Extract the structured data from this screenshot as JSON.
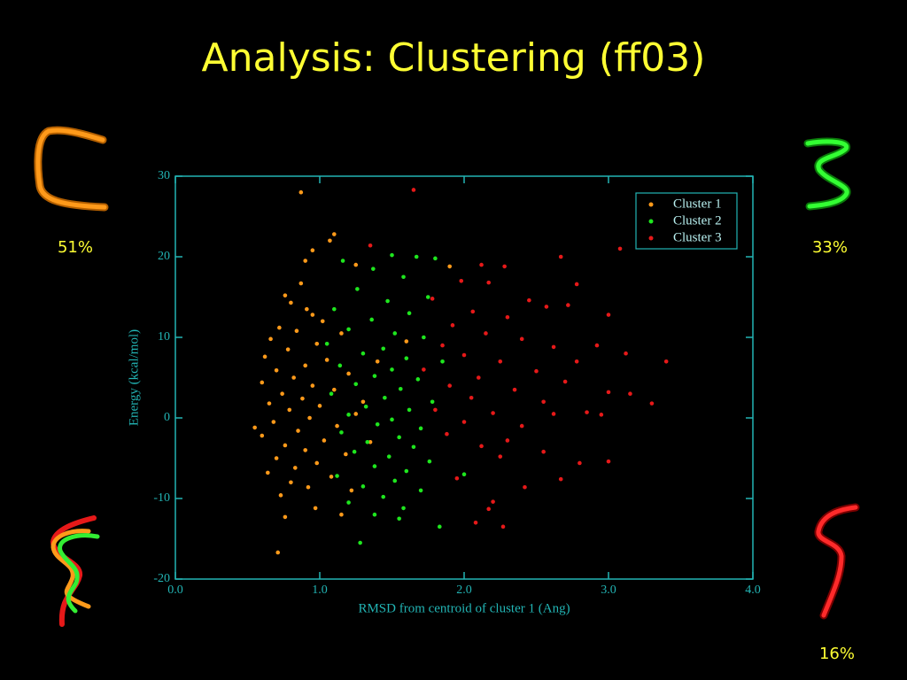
{
  "chart_data": {
    "type": "scatter",
    "title": "Analysis: Clustering (ff03)",
    "xlabel": "RMSD from centroid of cluster 1 (Ang)",
    "ylabel": "Energy (kcal/mol)",
    "xlim": [
      0,
      4
    ],
    "ylim": [
      -20,
      30
    ],
    "xticks": [
      {
        "value": 0,
        "label": "0.0"
      },
      {
        "value": 1,
        "label": "1.0"
      },
      {
        "value": 2,
        "label": "2.0"
      },
      {
        "value": 3,
        "label": "3.0"
      },
      {
        "value": 4,
        "label": "4.0"
      }
    ],
    "yticks": [
      -20,
      -10,
      0,
      10,
      20,
      30
    ],
    "legend": "upper right",
    "series": [
      {
        "name": "Cluster 1",
        "color": "#ff9a1a",
        "x": [
          0.87,
          1.1,
          1.07,
          0.95,
          0.9,
          1.25,
          0.87,
          0.76,
          0.8,
          0.91,
          0.95,
          1.02,
          0.72,
          0.84,
          1.15,
          0.66,
          0.98,
          0.78,
          0.62,
          1.05,
          0.9,
          0.7,
          1.2,
          0.82,
          0.6,
          0.95,
          1.1,
          0.74,
          0.88,
          0.65,
          1.0,
          0.79,
          1.25,
          0.93,
          0.68,
          1.12,
          0.85,
          0.6,
          1.03,
          0.76,
          0.9,
          1.18,
          0.7,
          0.98,
          0.83,
          0.64,
          1.08,
          0.8,
          0.92,
          1.22,
          0.73,
          0.97,
          0.76,
          1.15,
          0.71,
          1.3,
          1.35,
          1.4,
          0.55,
          1.6,
          1.9
        ],
        "values": [
          28,
          22.8,
          22,
          20.8,
          19.5,
          19,
          16.7,
          15.2,
          14.3,
          13.5,
          12.8,
          12,
          11.2,
          10.8,
          10.5,
          9.8,
          9.2,
          8.5,
          7.6,
          7.2,
          6.5,
          5.9,
          5.5,
          5,
          4.4,
          4,
          3.5,
          3,
          2.4,
          1.8,
          1.5,
          1,
          0.5,
          0,
          -0.5,
          -1,
          -1.6,
          -2.2,
          -2.8,
          -3.4,
          -4,
          -4.5,
          -5,
          -5.6,
          -6.2,
          -6.8,
          -7.3,
          -8,
          -8.6,
          -9,
          -9.6,
          -11.2,
          -12.3,
          -12,
          -16.7,
          2,
          -3,
          7,
          -1.2,
          9.5,
          18.8
        ]
      },
      {
        "name": "Cluster 2",
        "color": "#1ee61e",
        "x": [
          1.67,
          1.5,
          1.8,
          1.16,
          1.37,
          1.58,
          1.26,
          1.47,
          1.75,
          1.1,
          1.62,
          1.36,
          1.2,
          1.52,
          1.72,
          1.05,
          1.44,
          1.3,
          1.6,
          1.85,
          1.14,
          1.5,
          1.38,
          1.68,
          1.25,
          1.56,
          1.08,
          1.45,
          1.78,
          1.32,
          1.62,
          1.2,
          1.5,
          1.4,
          1.7,
          1.15,
          1.55,
          1.33,
          1.65,
          1.24,
          1.48,
          1.76,
          1.38,
          1.6,
          1.12,
          1.52,
          1.3,
          1.7,
          1.44,
          1.2,
          1.58,
          1.38,
          1.55,
          1.28,
          1.83,
          2.0
        ],
        "values": [
          20,
          20.2,
          19.8,
          19.5,
          18.5,
          17.5,
          16,
          14.5,
          15,
          13.5,
          13,
          12.2,
          11,
          10.5,
          10,
          9.2,
          8.6,
          8,
          7.4,
          7,
          6.5,
          6,
          5.2,
          4.8,
          4.2,
          3.6,
          3,
          2.5,
          2,
          1.4,
          1,
          0.4,
          -0.2,
          -0.8,
          -1.3,
          -1.8,
          -2.4,
          -3,
          -3.6,
          -4.2,
          -4.8,
          -5.4,
          -6,
          -6.6,
          -7.2,
          -7.8,
          -8.5,
          -9,
          -9.8,
          -10.5,
          -11.2,
          -12,
          -12.5,
          -15.5,
          -13.5,
          -7
        ]
      },
      {
        "name": "Cluster 3",
        "color": "#e61919",
        "x": [
          1.65,
          1.35,
          3.08,
          2.67,
          2.12,
          2.28,
          1.98,
          2.17,
          2.78,
          2.45,
          1.78,
          2.06,
          2.57,
          2.72,
          3.0,
          2.3,
          1.92,
          2.15,
          2.4,
          1.85,
          2.62,
          2.92,
          3.12,
          2.0,
          2.25,
          2.78,
          3.4,
          1.72,
          2.5,
          2.1,
          2.7,
          1.9,
          2.35,
          3.0,
          3.15,
          2.05,
          2.55,
          3.3,
          1.8,
          2.2,
          2.85,
          2.95,
          2.62,
          2.0,
          2.4,
          1.88,
          2.3,
          2.12,
          2.55,
          2.25,
          2.8,
          3.0,
          2.67,
          2.42,
          1.95,
          2.2,
          2.17,
          2.08,
          2.27
        ],
        "values": [
          28.3,
          21.4,
          21,
          20,
          19,
          18.8,
          17,
          16.8,
          16.6,
          14.6,
          14.8,
          13.2,
          13.8,
          14,
          12.8,
          12.5,
          11.5,
          10.5,
          9.8,
          9,
          8.8,
          9,
          8,
          7.8,
          7,
          7,
          7,
          6,
          5.8,
          5,
          4.5,
          4,
          3.5,
          3.2,
          3,
          2.5,
          2,
          1.8,
          1,
          0.6,
          0.7,
          0.4,
          0.5,
          -0.5,
          -1,
          -2,
          -2.8,
          -3.5,
          -4.2,
          -4.8,
          -5.6,
          -5.4,
          -7.6,
          -8.6,
          -7.5,
          -10.4,
          -11.3,
          -13,
          -13.5
        ]
      }
    ],
    "annotations": [
      "51%",
      "33%",
      "16%"
    ]
  }
}
